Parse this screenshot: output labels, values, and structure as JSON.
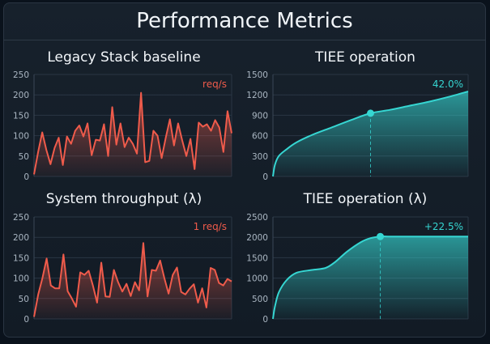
{
  "header": {
    "title": "Performance Metrics"
  },
  "chart_data": [
    {
      "id": "c1",
      "type": "area",
      "title": "Legacy Stack baseline",
      "annotation": "req/s",
      "color": "#ef5b4b",
      "ylim": [
        0,
        250
      ],
      "yticks": [
        0,
        50,
        100,
        150,
        200,
        250
      ],
      "series": [
        {
          "values": [
            5,
            60,
            108,
            65,
            30,
            70,
            95,
            28,
            98,
            80,
            112,
            125,
            98,
            130,
            52,
            90,
            88,
            128,
            50,
            170,
            78,
            130,
            72,
            95,
            80,
            56,
            205,
            35,
            38,
            112,
            100,
            45,
            95,
            140,
            76,
            130,
            88,
            50,
            92,
            18,
            132,
            122,
            128,
            112,
            138,
            120,
            60,
            160,
            106
          ]
        }
      ],
      "grid": true
    },
    {
      "id": "c2",
      "type": "area",
      "title": "TIEE operation",
      "annotation": "42.0%",
      "color": "#36d6d2",
      "ylim": [
        0,
        1500
      ],
      "yticks": [
        0,
        300,
        600,
        900,
        1200,
        1500
      ],
      "x": [
        0,
        0.01,
        0.03,
        0.07,
        0.12,
        0.2,
        0.3,
        0.4,
        0.5,
        0.6,
        0.7,
        0.8,
        0.9,
        1.0
      ],
      "series": [
        {
          "values": [
            0,
            170,
            300,
            400,
            500,
            610,
            720,
            830,
            930,
            980,
            1040,
            1100,
            1170,
            1250
          ]
        }
      ],
      "marker_index": 8,
      "grid": true
    },
    {
      "id": "c3",
      "type": "area",
      "title": "System throughput (λ)",
      "annotation": "1 req/s",
      "color": "#ef5b4b",
      "ylim": [
        0,
        250
      ],
      "yticks": [
        0,
        50,
        100,
        150,
        200,
        250
      ],
      "series": [
        {
          "values": [
            5,
            60,
            100,
            148,
            82,
            75,
            75,
            158,
            68,
            50,
            30,
            114,
            108,
            118,
            82,
            40,
            138,
            55,
            54,
            120,
            90,
            67,
            86,
            56,
            90,
            70,
            186,
            55,
            120,
            118,
            143,
            100,
            62,
            108,
            126,
            66,
            60,
            74,
            85,
            40,
            75,
            28,
            125,
            120,
            88,
            82,
            98,
            92
          ]
        }
      ],
      "grid": true
    },
    {
      "id": "c4",
      "type": "area",
      "title": "TIEE operation (λ)",
      "annotation": "+22.5%",
      "color": "#36d6d2",
      "ylim": [
        0,
        2500
      ],
      "yticks": [
        0,
        500,
        1000,
        1500,
        2000,
        2500
      ],
      "x": [
        0,
        0.01,
        0.03,
        0.07,
        0.12,
        0.2,
        0.27,
        0.32,
        0.38,
        0.45,
        0.5,
        0.55,
        0.6,
        0.7,
        0.8,
        0.9,
        1.0
      ],
      "series": [
        {
          "values": [
            0,
            300,
            650,
            950,
            1130,
            1200,
            1250,
            1400,
            1650,
            1880,
            1980,
            2020,
            2020,
            2020,
            2020,
            2020,
            2020
          ]
        }
      ],
      "marker_index": 11,
      "grid": true
    }
  ]
}
